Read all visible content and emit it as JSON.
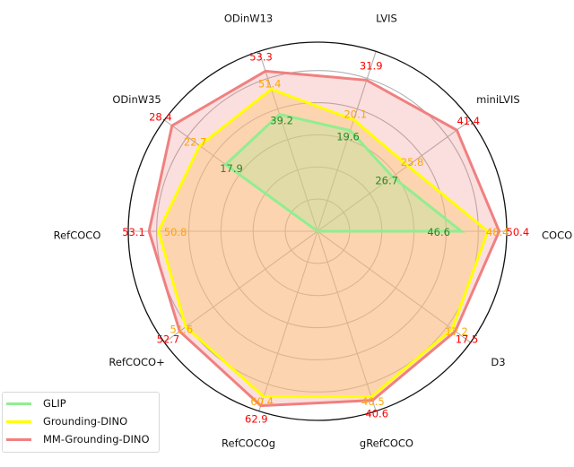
{
  "chart_data": {
    "type": "radar",
    "title": "",
    "categories": [
      "COCO",
      "miniLVIS",
      "LVIS",
      "ODinW13",
      "ODinW35",
      "RefCOCO",
      "RefCOCO+",
      "RefCOCOg",
      "gRefCOCO",
      "D3"
    ],
    "series": [
      {
        "name": "GLIP",
        "color": "#90ee90",
        "label_color": "#228b22",
        "fill": "rgba(144,238,144,0.25)",
        "values": [
          46.6,
          26.7,
          19.6,
          39.2,
          17.9,
          null,
          null,
          null,
          null,
          null
        ],
        "radius_fraction": [
          0.76,
          0.49,
          0.56,
          0.65,
          0.6,
          0,
          0,
          0,
          0,
          0
        ]
      },
      {
        "name": "Grounding-DINO",
        "color": "#ffff00",
        "label_color": "#ffa500",
        "fill": "rgba(255,200,120,0.45)",
        "values": [
          48.4,
          25.8,
          20.1,
          51.4,
          22.7,
          50.8,
          51.6,
          60.4,
          40.5,
          17.2
        ],
        "radius_fraction": [
          0.9,
          0.59,
          0.62,
          0.79,
          0.77,
          0.84,
          0.86,
          0.92,
          0.92,
          0.88
        ]
      },
      {
        "name": "MM-Grounding-DINO",
        "color": "#f08080",
        "label_color": "#ff0000",
        "fill": "rgba(240,128,128,0.25)",
        "values": [
          50.4,
          41.4,
          31.9,
          53.3,
          28.4,
          53.1,
          52.7,
          62.9,
          40.6,
          17.5
        ],
        "radius_fraction": [
          0.96,
          0.91,
          0.84,
          0.89,
          0.95,
          0.89,
          0.9,
          0.97,
          0.94,
          0.9
        ]
      }
    ],
    "grid": true,
    "grid_rings": 5,
    "legend_position": "lower left",
    "xlabel": "",
    "ylabel": ""
  },
  "legend": {
    "items": [
      "GLIP",
      "Grounding-DINO",
      "MM-Grounding-DINO"
    ]
  }
}
